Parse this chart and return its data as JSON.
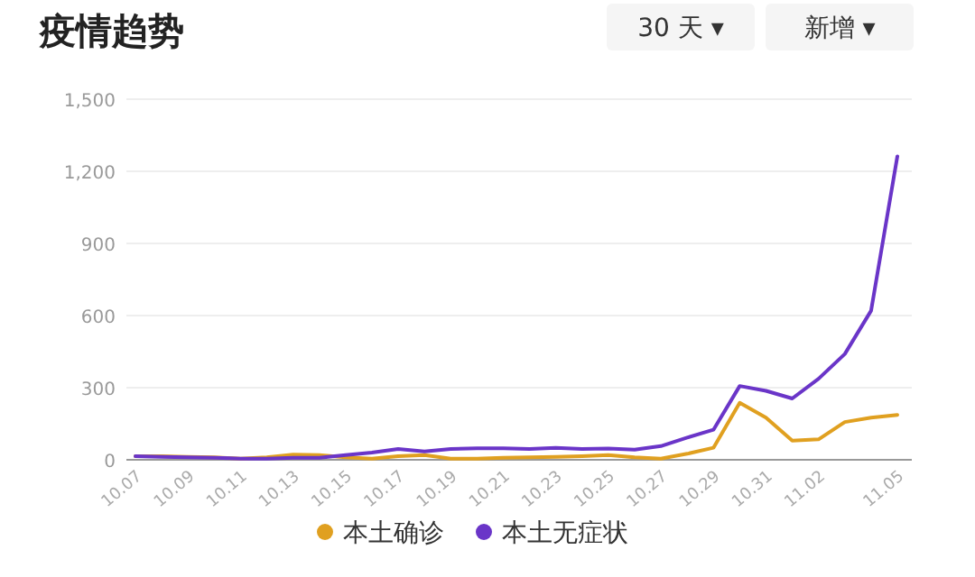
{
  "chart_data": {
    "type": "line",
    "title": "疫情趋势",
    "annotations": [
      "30 天 ▾",
      "新增 ▾"
    ],
    "categories": [
      "10.07",
      null,
      "10.09",
      null,
      "10.11",
      null,
      "10.13",
      null,
      "10.15",
      null,
      "10.17",
      null,
      "10.19",
      null,
      "10.21",
      null,
      "10.23",
      null,
      "10.25",
      null,
      "10.27",
      null,
      "10.29",
      null,
      "10.31",
      null,
      "11.02",
      null,
      null,
      "11.05"
    ],
    "series": [
      {
        "name": "本土确诊",
        "color": "#e0a020",
        "values": [
          15,
          15,
          12,
          10,
          5,
          10,
          22,
          20,
          10,
          5,
          15,
          20,
          5,
          5,
          8,
          10,
          12,
          15,
          20,
          10,
          5,
          25,
          50,
          237,
          175,
          80,
          85,
          157,
          175,
          187
        ]
      },
      {
        "name": "本土无症状",
        "color": "#6a35c8",
        "values": [
          15,
          12,
          10,
          8,
          5,
          5,
          8,
          8,
          20,
          30,
          45,
          35,
          45,
          48,
          48,
          45,
          50,
          45,
          47,
          42,
          57,
          92,
          125,
          307,
          287,
          255,
          337,
          440,
          620,
          1262
        ]
      }
    ],
    "ylim": [
      0,
      1500
    ],
    "yticks": [
      0,
      {
        "value": 300,
        "label": "300"
      },
      {
        "value": 600,
        "label": "600"
      },
      {
        "value": 900,
        "label": "900"
      },
      {
        "value": 1200,
        "label": "1,200"
      },
      {
        "value": 1500,
        "label": "1,500"
      }
    ],
    "grid": "y",
    "legend": "bottom",
    "marker": "none",
    "line_style": "solid"
  }
}
